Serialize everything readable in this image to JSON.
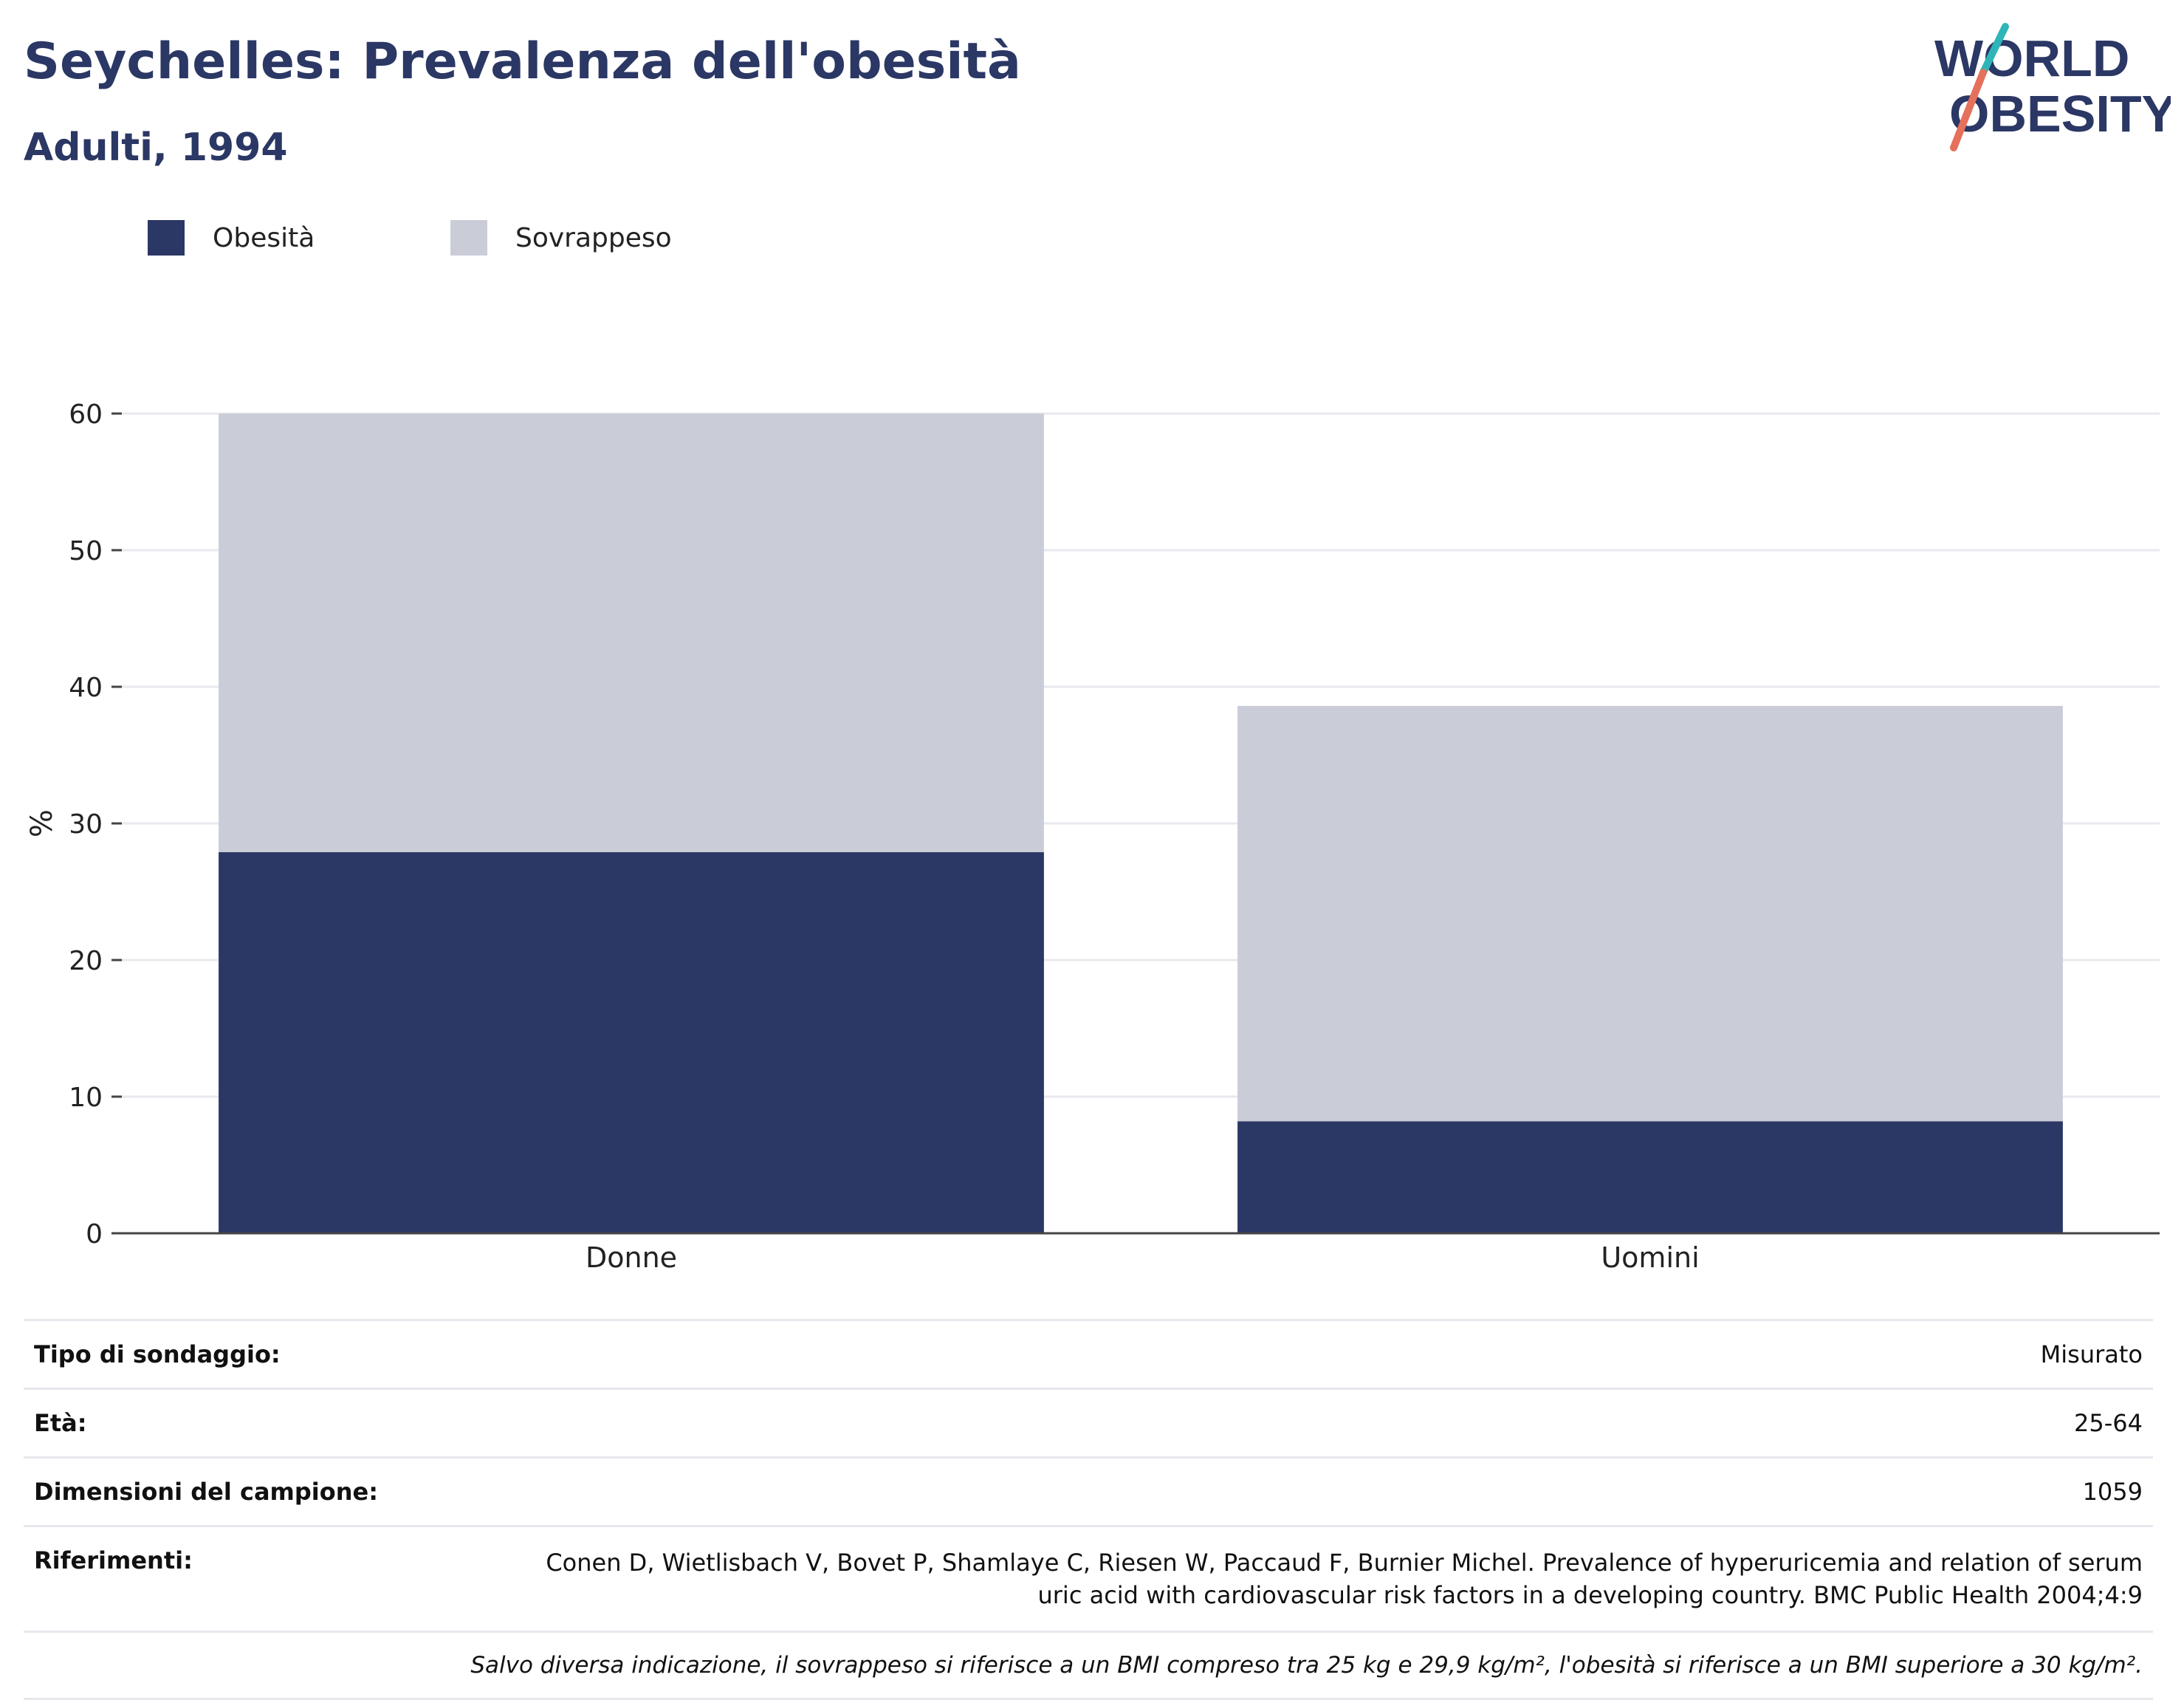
{
  "header": {
    "title": "Seychelles: Prevalenza dell'obesità",
    "subtitle": "Adulti, 1994"
  },
  "logo": {
    "line1": "WORLD",
    "line2": "OBESITY"
  },
  "colors": {
    "obesity": "#2b3764",
    "overweight": "#cacdd8",
    "title": "#2b3764",
    "logo_teal": "#2fb5b8",
    "logo_coral": "#e5705b"
  },
  "legend": [
    {
      "label": "Obesità",
      "color": "#2b3764"
    },
    {
      "label": "Sovrappeso",
      "color": "#cacdd8"
    }
  ],
  "chart_data": {
    "type": "bar",
    "stacked": true,
    "categories": [
      "Donne",
      "Uomini"
    ],
    "series": [
      {
        "name": "Obesità",
        "color": "#2b3764",
        "values": [
          27.9,
          8.2
        ]
      },
      {
        "name": "Sovrappeso",
        "color": "#cacdd8",
        "values": [
          32.1,
          30.4
        ]
      }
    ],
    "xlabel": "",
    "ylabel": "%",
    "ylim": [
      0,
      60
    ],
    "yticks": [
      0,
      10,
      20,
      30,
      40,
      50,
      60
    ],
    "grid": true,
    "legend_position": "top-left"
  },
  "info": {
    "rows": [
      {
        "label": "Tipo di sondaggio:",
        "value": "Misurato"
      },
      {
        "label": "Età:",
        "value": "25-64"
      },
      {
        "label": "Dimensioni del campione:",
        "value": "1059"
      }
    ],
    "references": {
      "label": "Riferimenti:",
      "line1": "Conen D, Wietlisbach V, Bovet P, Shamlaye C, Riesen W, Paccaud F, Burnier Michel. Prevalence of hyperuricemia and relation of serum",
      "line2": "uric acid with cardiovascular risk factors in a developing country. BMC Public Health 2004;4:9"
    },
    "note": "Salvo diversa indicazione, il sovrappeso si riferisce a un BMI compreso tra 25 kg e 29,9 kg/m², l'obesità si riferisce a un BMI superiore a 30 kg/m²."
  }
}
